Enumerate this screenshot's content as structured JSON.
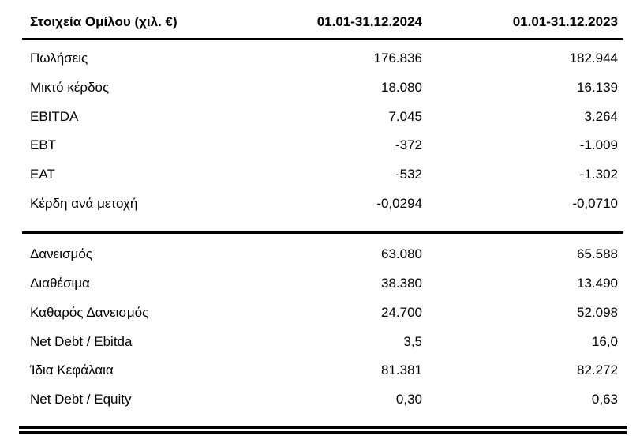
{
  "page": {
    "background_color": "#ffffff",
    "text_color": "#000000",
    "rule_color": "#000000"
  },
  "table": {
    "header": {
      "label": "Στοιχεία Ομίλου (χιλ. €)",
      "period_2024": "01.01-31.12.2024",
      "period_2023": "01.01-31.12.2023"
    },
    "sections": [
      {
        "rows": [
          {
            "label": "Πωλήσεις",
            "v2024": "176.836",
            "v2023": "182.944"
          },
          {
            "label": "Μικτό κέρδος",
            "v2024": "18.080",
            "v2023": "16.139"
          },
          {
            "label": "EBITDA",
            "v2024": "7.045",
            "v2023": "3.264"
          },
          {
            "label": "EBT",
            "v2024": "-372",
            "v2023": "-1.009"
          },
          {
            "label": "EAT",
            "v2024": "-532",
            "v2023": "-1.302"
          },
          {
            "label": "Κέρδη ανά μετοχή",
            "v2024": "-0,0294",
            "v2023": "-0,0710"
          }
        ]
      },
      {
        "rows": [
          {
            "label": "Δανεισμός",
            "v2024": "63.080",
            "v2023": "65.588"
          },
          {
            "label": "Διαθέσιμα",
            "v2024": "38.380",
            "v2023": "13.490"
          },
          {
            "label": "Καθαρός Δανεισμός",
            "v2024": "24.700",
            "v2023": "52.098"
          },
          {
            "label": "Net Debt / Ebitda",
            "v2024": "3,5",
            "v2023": "16,0"
          },
          {
            "label": "Ίδια Κεφάλαια",
            "v2024": "81.381",
            "v2023": "82.272"
          },
          {
            "label": "Net Debt / Equity",
            "v2024": "0,30",
            "v2023": "0,63"
          }
        ]
      }
    ]
  }
}
